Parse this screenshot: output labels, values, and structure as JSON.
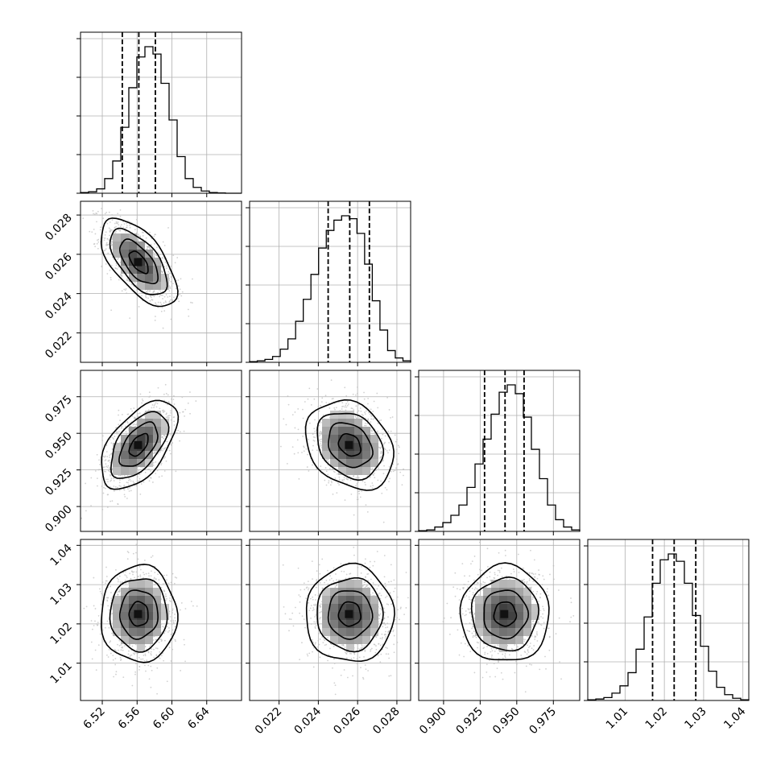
{
  "colors": {
    "axis": "#000000",
    "grid": "#b0b0b0",
    "hist_line": "#000000",
    "contour_line": "#000000",
    "scatter_point": "#bdbdbd",
    "density_dark": "#111111",
    "density_light": "#ffffff"
  },
  "chart_data": {
    "type": "corner",
    "title": "",
    "grid": true,
    "parameters": [
      {
        "index": 0,
        "range": [
          6.495,
          6.68
        ],
        "ticks": [
          6.52,
          6.56,
          6.6,
          6.64
        ],
        "tick_labels": [
          "6.52",
          "6.56",
          "6.60",
          "6.64"
        ],
        "quantiles": [
          6.543,
          6.562,
          6.581
        ],
        "median": 6.562,
        "sigma": 0.0195,
        "hist_bins": [
          0.005,
          0.01,
          0.03,
          0.1,
          0.22,
          0.45,
          0.72,
          0.93,
          1.0,
          0.95,
          0.75,
          0.5,
          0.25,
          0.1,
          0.04,
          0.015,
          0.005,
          0.002,
          0,
          0
        ]
      },
      {
        "index": 1,
        "range": [
          0.0205,
          0.0287
        ],
        "ticks": [
          0.022,
          0.024,
          0.026,
          0.028
        ],
        "tick_labels": [
          "0.022",
          "0.024",
          "0.026",
          "0.028"
        ],
        "quantiles": [
          0.0245,
          0.0256,
          0.0266
        ],
        "median": 0.0256,
        "sigma": 0.001,
        "hist_bins": [
          0.005,
          0.01,
          0.02,
          0.04,
          0.09,
          0.16,
          0.28,
          0.43,
          0.6,
          0.78,
          0.9,
          0.97,
          1.0,
          0.98,
          0.88,
          0.67,
          0.42,
          0.22,
          0.08,
          0.03,
          0.01
        ]
      },
      {
        "index": 2,
        "range": [
          0.883,
          0.993
        ],
        "ticks": [
          0.9,
          0.925,
          0.95,
          0.975
        ],
        "tick_labels": [
          "0.900",
          "0.925",
          "0.950",
          "0.975"
        ],
        "quantiles": [
          0.928,
          0.942,
          0.955
        ],
        "median": 0.942,
        "sigma": 0.0135,
        "hist_bins": [
          0.005,
          0.01,
          0.03,
          0.06,
          0.11,
          0.18,
          0.3,
          0.46,
          0.63,
          0.8,
          0.95,
          1.0,
          0.94,
          0.78,
          0.56,
          0.36,
          0.18,
          0.08,
          0.03,
          0.01
        ]
      },
      {
        "index": 3,
        "range": [
          1.0005,
          1.0415
        ],
        "ticks": [
          1.01,
          1.02,
          1.03,
          1.04
        ],
        "tick_labels": [
          "1.01",
          "1.02",
          "1.03",
          "1.04"
        ],
        "quantiles": [
          1.017,
          1.0225,
          1.028
        ],
        "median": 1.0225,
        "sigma": 0.0055,
        "hist_bins": [
          0.005,
          0.01,
          0.02,
          0.05,
          0.1,
          0.19,
          0.35,
          0.57,
          0.8,
          0.96,
          1.0,
          0.95,
          0.8,
          0.58,
          0.37,
          0.2,
          0.09,
          0.04,
          0.015,
          0.005
        ]
      }
    ],
    "correlations": [
      {
        "row": 1,
        "col": 0,
        "rho": -0.62
      },
      {
        "row": 2,
        "col": 0,
        "rho": 0.55
      },
      {
        "row": 2,
        "col": 1,
        "rho": -0.25
      },
      {
        "row": 3,
        "col": 0,
        "rho": 0.0
      },
      {
        "row": 3,
        "col": 1,
        "rho": 0.0
      },
      {
        "row": 3,
        "col": 2,
        "rho": 0.0
      }
    ],
    "contour_levels_sigma": [
      0.5,
      1.0,
      1.5,
      2.0
    ]
  }
}
